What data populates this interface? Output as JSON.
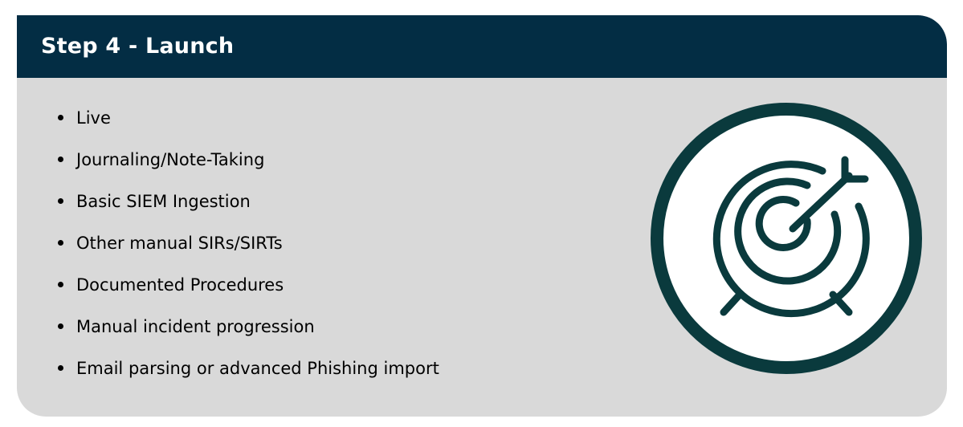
{
  "header": {
    "title": "Step 4 - Launch"
  },
  "bullets": [
    "Live",
    "Journaling/Note-Taking",
    "Basic SIEM Ingestion",
    "Other manual SIRs/SIRTs",
    "Documented Procedures",
    "Manual incident progression",
    "Email parsing or advanced Phishing import"
  ],
  "icon": {
    "name": "target-icon"
  },
  "colors": {
    "header_bg": "#032d44",
    "body_bg": "#d9d9d9",
    "icon_stroke": "#0a3a3d"
  }
}
